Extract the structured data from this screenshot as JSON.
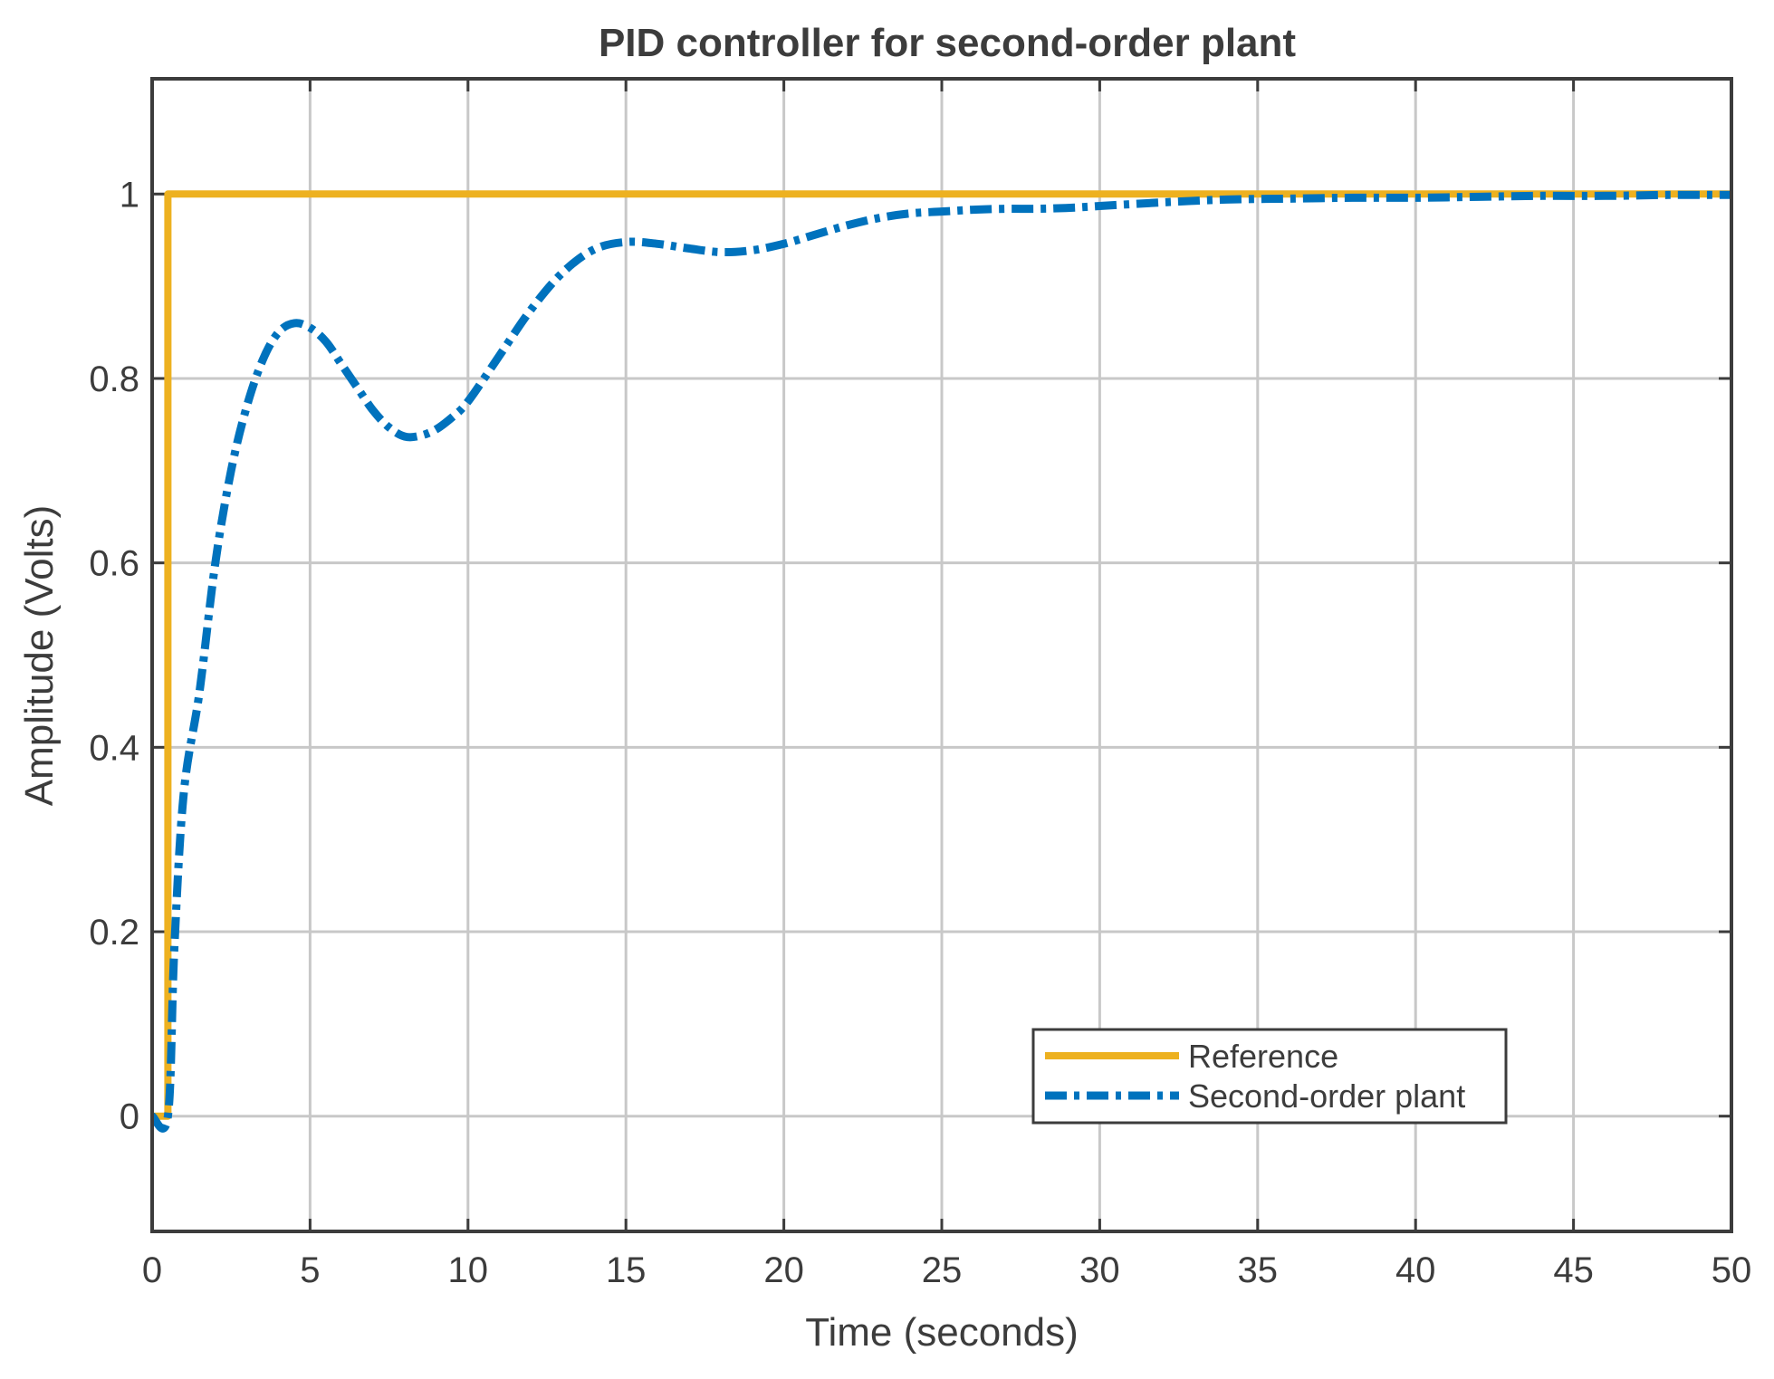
{
  "chart_data": {
    "type": "line",
    "title": "PID controller for second-order plant",
    "xlabel": "Time (seconds)",
    "ylabel": "Amplitude (Volts)",
    "xlim": [
      0,
      50
    ],
    "ylim": [
      -0.125,
      1.125
    ],
    "x_ticks": [
      0,
      5,
      10,
      15,
      20,
      25,
      30,
      35,
      40,
      45,
      50
    ],
    "y_ticks": [
      0,
      0.2,
      0.4,
      0.6,
      0.8,
      1
    ],
    "x_tick_labels": [
      "0",
      "5",
      "10",
      "15",
      "20",
      "25",
      "30",
      "35",
      "40",
      "45",
      "50"
    ],
    "y_tick_labels": [
      "0",
      "0.2",
      "0.4",
      "0.6",
      "0.8",
      "1"
    ],
    "grid": true,
    "legend_position": "bottom-right",
    "series": [
      {
        "name": "Reference",
        "color": "#EDB120",
        "style": "solid",
        "x": [
          0,
          0.5,
          0.5,
          50
        ],
        "y": [
          0,
          0,
          1,
          1
        ]
      },
      {
        "name": "Second-order plant",
        "color": "#0072BD",
        "style": "dashdot",
        "x": [
          0,
          0.5,
          0.7,
          1.0,
          1.5,
          2.0,
          2.5,
          3.0,
          3.5,
          4.0,
          4.5,
          5.0,
          5.5,
          6.0,
          6.5,
          7.0,
          7.5,
          8.0,
          8.5,
          9.0,
          9.5,
          10,
          11,
          12,
          13,
          14,
          15,
          16,
          17,
          18,
          19,
          20,
          21,
          22,
          23,
          24,
          25,
          26,
          27,
          28,
          29,
          30,
          32,
          34,
          36,
          38,
          40,
          42,
          44,
          46,
          48,
          50
        ],
        "y": [
          0,
          0,
          0.18,
          0.35,
          0.46,
          0.6,
          0.7,
          0.77,
          0.82,
          0.85,
          0.86,
          0.855,
          0.84,
          0.815,
          0.79,
          0.765,
          0.747,
          0.737,
          0.738,
          0.745,
          0.758,
          0.775,
          0.825,
          0.875,
          0.915,
          0.94,
          0.948,
          0.946,
          0.941,
          0.937,
          0.939,
          0.946,
          0.956,
          0.966,
          0.974,
          0.979,
          0.981,
          0.983,
          0.984,
          0.984,
          0.985,
          0.987,
          0.991,
          0.994,
          0.995,
          0.996,
          0.996,
          0.997,
          0.998,
          0.998,
          0.999,
          0.999
        ]
      }
    ]
  }
}
